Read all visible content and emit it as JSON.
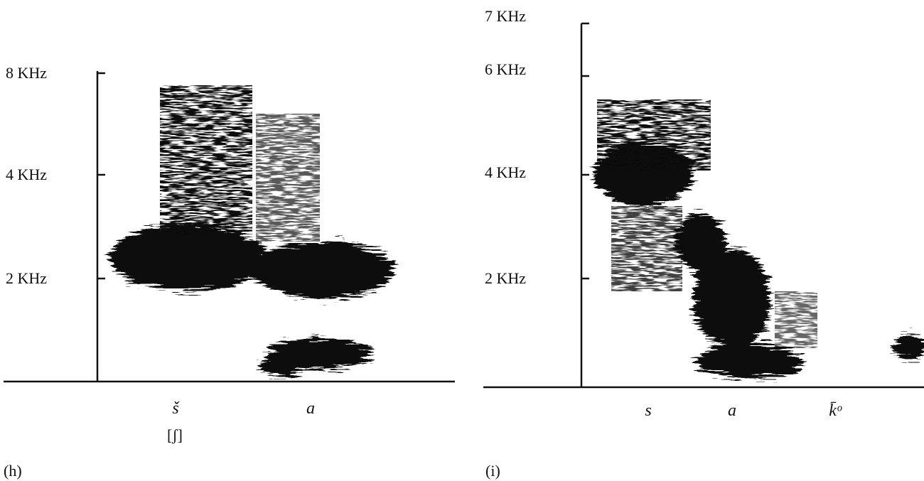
{
  "panels": [
    {
      "label": "(h)",
      "axis_labels": [
        "8 KHz",
        "4 KHz",
        "2 KHz"
      ],
      "segments": [
        "š",
        "a"
      ],
      "transcription": "[ʃ]"
    },
    {
      "label": "(i)",
      "axis_labels": [
        "7 KHz",
        "6 KHz",
        "4 KHz",
        "2 KHz"
      ],
      "segments": [
        "s",
        "a",
        "k̄ᵒ"
      ]
    }
  ]
}
